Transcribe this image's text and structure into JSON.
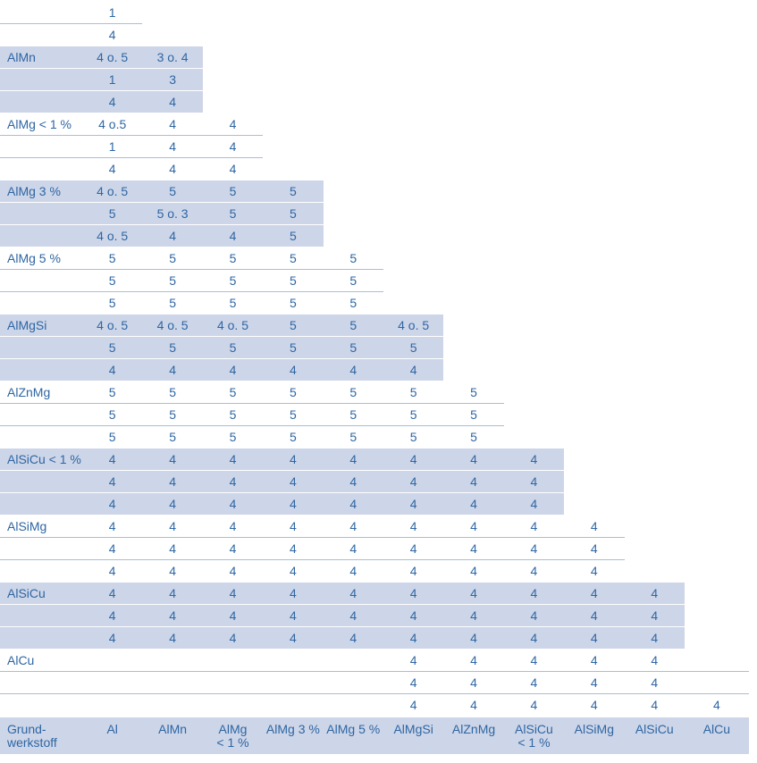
{
  "colors": {
    "text": "#2e66a3",
    "shade": "#cdd5e8",
    "divider": "#a9bed8"
  },
  "table": {
    "corner_label": "Grund-\nwerkstoff",
    "column_headers": [
      "Al",
      "AlMn",
      "AlMg\n< 1 %",
      "AlMg 3 %",
      "AlMg 5 %",
      "AlMgSi",
      "AlZnMg",
      "AlSiCu\n< 1 %",
      "AlSiMg",
      "AlSiCu",
      "AlCu"
    ],
    "groups": [
      {
        "label": "",
        "span": 1,
        "shaded": false,
        "rows": [
          [
            "1"
          ],
          [
            "4"
          ]
        ]
      },
      {
        "label": "AlMn",
        "span": 2,
        "shaded": true,
        "rows": [
          [
            "4 o. 5",
            "3 o. 4"
          ],
          [
            "1",
            "3"
          ],
          [
            "4",
            "4"
          ]
        ]
      },
      {
        "label": "AlMg < 1 %",
        "span": 3,
        "shaded": false,
        "rows": [
          [
            "4 o.5",
            "4",
            "4"
          ],
          [
            "1",
            "4",
            "4"
          ],
          [
            "4",
            "4",
            "4"
          ]
        ]
      },
      {
        "label": "AlMg 3 %",
        "span": 4,
        "shaded": true,
        "rows": [
          [
            "4 o. 5",
            "5",
            "5",
            "5"
          ],
          [
            "5",
            "5 o. 3",
            "5",
            "5"
          ],
          [
            "4 o. 5",
            "4",
            "4",
            "5"
          ]
        ]
      },
      {
        "label": "AlMg 5 %",
        "span": 5,
        "shaded": false,
        "rows": [
          [
            "5",
            "5",
            "5",
            "5",
            "5"
          ],
          [
            "5",
            "5",
            "5",
            "5",
            "5"
          ],
          [
            "5",
            "5",
            "5",
            "5",
            "5"
          ]
        ]
      },
      {
        "label": "AlMgSi",
        "span": 6,
        "shaded": true,
        "rows": [
          [
            "4 o. 5",
            "4 o. 5",
            "4 o. 5",
            "5",
            "5",
            "4 o. 5"
          ],
          [
            "5",
            "5",
            "5",
            "5",
            "5",
            "5"
          ],
          [
            "4",
            "4",
            "4",
            "4",
            "4",
            "4"
          ]
        ]
      },
      {
        "label": "AlZnMg",
        "span": 7,
        "shaded": false,
        "rows": [
          [
            "5",
            "5",
            "5",
            "5",
            "5",
            "5",
            "5"
          ],
          [
            "5",
            "5",
            "5",
            "5",
            "5",
            "5",
            "5"
          ],
          [
            "5",
            "5",
            "5",
            "5",
            "5",
            "5",
            "5"
          ]
        ]
      },
      {
        "label": "AlSiCu < 1 %",
        "span": 8,
        "shaded": true,
        "rows": [
          [
            "4",
            "4",
            "4",
            "4",
            "4",
            "4",
            "4",
            "4"
          ],
          [
            "4",
            "4",
            "4",
            "4",
            "4",
            "4",
            "4",
            "4"
          ],
          [
            "4",
            "4",
            "4",
            "4",
            "4",
            "4",
            "4",
            "4"
          ]
        ]
      },
      {
        "label": "AlSiMg",
        "span": 9,
        "shaded": false,
        "rows": [
          [
            "4",
            "4",
            "4",
            "4",
            "4",
            "4",
            "4",
            "4",
            "4"
          ],
          [
            "4",
            "4",
            "4",
            "4",
            "4",
            "4",
            "4",
            "4",
            "4"
          ],
          [
            "4",
            "4",
            "4",
            "4",
            "4",
            "4",
            "4",
            "4",
            "4"
          ]
        ]
      },
      {
        "label": "AlSiCu",
        "span": 10,
        "shaded": true,
        "rows": [
          [
            "4",
            "4",
            "4",
            "4",
            "4",
            "4",
            "4",
            "4",
            "4",
            "4"
          ],
          [
            "4",
            "4",
            "4",
            "4",
            "4",
            "4",
            "4",
            "4",
            "4",
            "4"
          ],
          [
            "4",
            "4",
            "4",
            "4",
            "4",
            "4",
            "4",
            "4",
            "4",
            "4"
          ]
        ]
      },
      {
        "label": "AlCu",
        "span": 11,
        "shaded": false,
        "rows": [
          [
            "",
            "",
            "",
            "",
            "",
            "4",
            "4",
            "4",
            "4",
            "4",
            ""
          ],
          [
            "",
            "",
            "",
            "",
            "",
            "4",
            "4",
            "4",
            "4",
            "4",
            ""
          ],
          [
            "",
            "",
            "",
            "",
            "",
            "4",
            "4",
            "4",
            "4",
            "4",
            "4"
          ]
        ]
      }
    ]
  }
}
